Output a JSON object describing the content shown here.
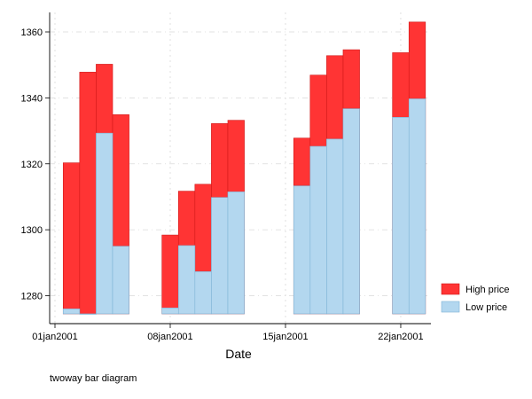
{
  "chart_data": {
    "type": "bar",
    "subtype": "range-bar (twoway bar, overlaid)",
    "xlabel": "Date",
    "ylabel": "",
    "note": "twoway bar diagram",
    "x_ticks": [
      "01jan2001",
      "08jan2001",
      "15jan2001",
      "22jan2001"
    ],
    "y_ticks": [
      1280,
      1300,
      1320,
      1340,
      1360
    ],
    "ylim": [
      1274.5,
      1365
    ],
    "grid": true,
    "legend_position": "right",
    "series": [
      {
        "name": "High price",
        "color": "#ff3434",
        "points": [
          {
            "date": "02jan2001",
            "value": 1320.3
          },
          {
            "date": "03jan2001",
            "value": 1347.8
          },
          {
            "date": "04jan2001",
            "value": 1350.2
          },
          {
            "date": "05jan2001",
            "value": 1334.9
          },
          {
            "date": "08jan2001",
            "value": 1298.4
          },
          {
            "date": "09jan2001",
            "value": 1311.7
          },
          {
            "date": "10jan2001",
            "value": 1313.8
          },
          {
            "date": "11jan2001",
            "value": 1332.2
          },
          {
            "date": "12jan2001",
            "value": 1333.2
          },
          {
            "date": "16jan2001",
            "value": 1327.8
          },
          {
            "date": "17jan2001",
            "value": 1346.9
          },
          {
            "date": "18jan2001",
            "value": 1352.8
          },
          {
            "date": "19jan2001",
            "value": 1354.6
          },
          {
            "date": "22jan2001",
            "value": 1353.7
          },
          {
            "date": "23jan2001",
            "value": 1363.0
          }
        ]
      },
      {
        "name": "Low price",
        "color": "#b3d7ef",
        "points": [
          {
            "date": "02jan2001",
            "value": 1276.0
          },
          {
            "date": "03jan2001",
            "value": 1274.5
          },
          {
            "date": "04jan2001",
            "value": 1329.3
          },
          {
            "date": "05jan2001",
            "value": 1295.0
          },
          {
            "date": "08jan2001",
            "value": 1276.3
          },
          {
            "date": "09jan2001",
            "value": 1295.2
          },
          {
            "date": "10jan2001",
            "value": 1287.3
          },
          {
            "date": "11jan2001",
            "value": 1309.8
          },
          {
            "date": "12jan2001",
            "value": 1311.5
          },
          {
            "date": "16jan2001",
            "value": 1313.3
          },
          {
            "date": "17jan2001",
            "value": 1325.3
          },
          {
            "date": "18jan2001",
            "value": 1327.5
          },
          {
            "date": "19jan2001",
            "value": 1336.7
          },
          {
            "date": "22jan2001",
            "value": 1334.1
          },
          {
            "date": "23jan2001",
            "value": 1339.7
          }
        ]
      }
    ]
  }
}
